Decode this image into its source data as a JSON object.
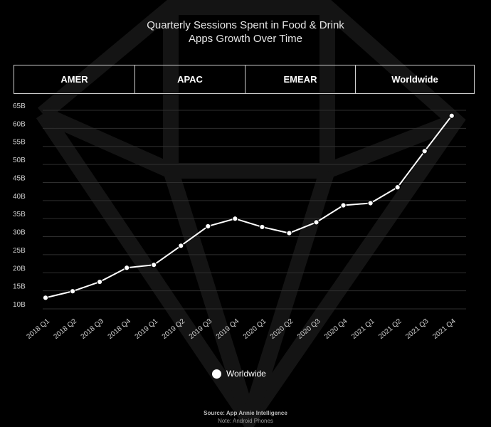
{
  "header": {
    "title_line1": "Quarterly Sessions Spent in Food & Drink",
    "title_line2": "Apps Growth Over Time"
  },
  "tabs": [
    {
      "label": "AMER"
    },
    {
      "label": "APAC"
    },
    {
      "label": "EMEAR"
    },
    {
      "label": "Worldwide"
    }
  ],
  "chart_data": {
    "type": "line",
    "title": "Quarterly Sessions Spent in Food & Drink Apps Growth Over Time",
    "xlabel": "",
    "ylabel": "",
    "categories": [
      "2018 Q1",
      "2018 Q2",
      "2018 Q3",
      "2018 Q4",
      "2019 Q1",
      "2019 Q2",
      "2019 Q3",
      "2019 Q4",
      "2020 Q1",
      "2020 Q2",
      "2020 Q3",
      "2020 Q4",
      "2021 Q1",
      "2021 Q2",
      "2021 Q3",
      "2021 Q4"
    ],
    "series": [
      {
        "name": "Worldwide",
        "values": [
          11.7,
          13.5,
          16.1,
          20.0,
          20.8,
          26.1,
          31.5,
          33.6,
          31.3,
          29.6,
          32.6,
          37.3,
          37.9,
          42.3,
          52.3,
          62.1
        ]
      }
    ],
    "yticks": [
      "10B",
      "15B",
      "20B",
      "25B",
      "30B",
      "35B",
      "40B",
      "45B",
      "50B",
      "55B",
      "60B",
      "65B"
    ],
    "ylim": [
      10,
      65
    ],
    "grid": true,
    "legend": "bottom-center",
    "color": "#ffffff"
  },
  "legend": {
    "label": "Worldwide"
  },
  "footer": {
    "source": "Source: App Annie Intelligence",
    "note": "Note: Android Phones"
  }
}
